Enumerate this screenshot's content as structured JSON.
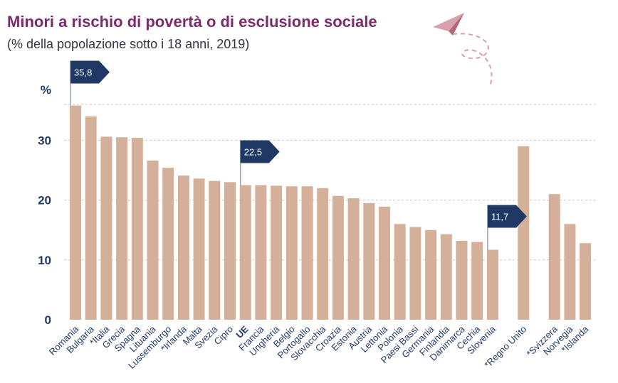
{
  "title": "Minori a rischio di povertà o di esclusione sociale",
  "subtitle": "(% della popolazione sotto i 18 anni, 2019)",
  "colors": {
    "bar": "#d4b09a",
    "flag": "#1f3864",
    "title": "#7b2a6b",
    "grid": "#c8c8c8",
    "axis": "#1f3864"
  },
  "chart_data": {
    "type": "bar",
    "ylabel": "%",
    "ylim": [
      0,
      38
    ],
    "yticks": [
      0,
      10,
      20,
      30
    ],
    "grid": true,
    "categories": [
      "Romania",
      "Bulgaria",
      "*Italia",
      "Grecia",
      "Spagna",
      "Lituania",
      "Lussemburgo",
      "*Irlanda",
      "Malta",
      "Svezia",
      "Cipro",
      "UE",
      "Francia",
      "Ungheria",
      "Belgio",
      "Portogallo",
      "Slovacchia",
      "Croazia",
      "Estonia",
      "Austria",
      "Lettonia",
      "Polonia",
      "Paesi Bassi",
      "Germania",
      "Finlandia",
      "Danimarca",
      "Cechia",
      "Slovenia",
      "",
      "*Regno Unito",
      "",
      "*Svizzera",
      "Norvegia",
      "*Islanda"
    ],
    "values": [
      35.8,
      34.0,
      30.6,
      30.5,
      30.4,
      26.6,
      25.4,
      24.1,
      23.6,
      23.2,
      23.0,
      22.5,
      22.5,
      22.4,
      22.3,
      22.3,
      22.0,
      20.7,
      20.3,
      19.5,
      18.9,
      16.0,
      15.5,
      15.0,
      14.3,
      13.2,
      13.0,
      11.7,
      null,
      29.0,
      null,
      21.0,
      16.0,
      12.8
    ],
    "highlight": "UE",
    "annotations": [
      {
        "label": "35,8",
        "category": "Romania"
      },
      {
        "label": "22,5",
        "category": "UE"
      },
      {
        "label": "11,7",
        "category": "Slovenia"
      }
    ]
  }
}
